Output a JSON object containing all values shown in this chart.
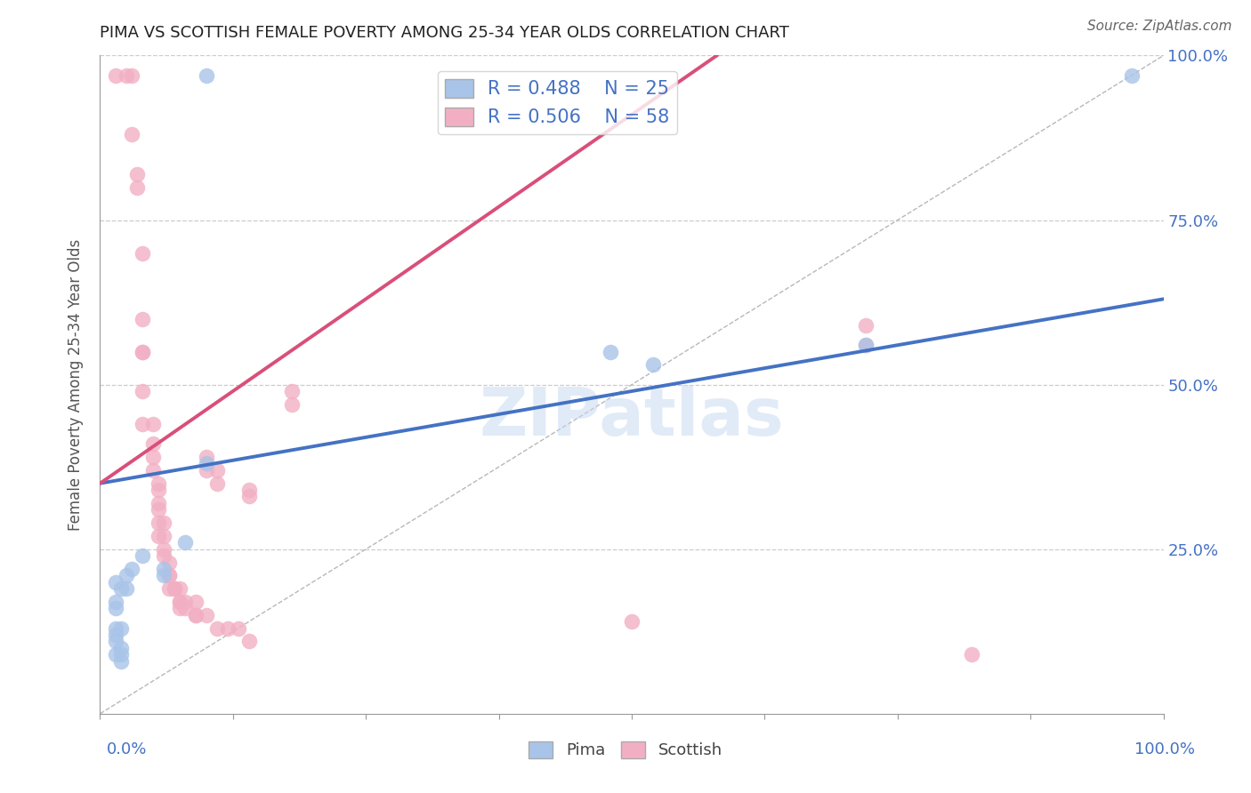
{
  "title": "PIMA VS SCOTTISH FEMALE POVERTY AMONG 25-34 YEAR OLDS CORRELATION CHART",
  "source": "Source: ZipAtlas.com",
  "ylabel": "Female Poverty Among 25-34 Year Olds",
  "watermark": "ZIPatlas",
  "pima_R": 0.488,
  "pima_N": 25,
  "scottish_R": 0.506,
  "scottish_N": 58,
  "pima_color": "#a8c4e8",
  "scottish_color": "#f2afc4",
  "pima_line_color": "#4472c4",
  "scottish_line_color": "#d94f7a",
  "diagonal_color": "#b8b8b8",
  "grid_color": "#cccccc",
  "background_color": "#ffffff",
  "title_color": "#222222",
  "legend_text_color": "#4472c4",
  "axis_label_color": "#4472c4",
  "pima_points": [
    [
      0.015,
      0.2
    ],
    [
      0.015,
      0.17
    ],
    [
      0.015,
      0.16
    ],
    [
      0.015,
      0.13
    ],
    [
      0.015,
      0.12
    ],
    [
      0.015,
      0.11
    ],
    [
      0.015,
      0.09
    ],
    [
      0.02,
      0.19
    ],
    [
      0.02,
      0.13
    ],
    [
      0.02,
      0.1
    ],
    [
      0.02,
      0.09
    ],
    [
      0.02,
      0.08
    ],
    [
      0.025,
      0.21
    ],
    [
      0.025,
      0.19
    ],
    [
      0.03,
      0.22
    ],
    [
      0.04,
      0.24
    ],
    [
      0.06,
      0.22
    ],
    [
      0.06,
      0.21
    ],
    [
      0.08,
      0.26
    ],
    [
      0.1,
      0.97
    ],
    [
      0.48,
      0.55
    ],
    [
      0.52,
      0.53
    ],
    [
      0.72,
      0.56
    ],
    [
      0.97,
      0.97
    ],
    [
      0.1,
      0.38
    ]
  ],
  "scottish_points": [
    [
      0.015,
      0.97
    ],
    [
      0.025,
      0.97
    ],
    [
      0.03,
      0.97
    ],
    [
      0.03,
      0.88
    ],
    [
      0.035,
      0.82
    ],
    [
      0.035,
      0.8
    ],
    [
      0.04,
      0.7
    ],
    [
      0.04,
      0.6
    ],
    [
      0.04,
      0.55
    ],
    [
      0.04,
      0.55
    ],
    [
      0.04,
      0.49
    ],
    [
      0.04,
      0.44
    ],
    [
      0.05,
      0.44
    ],
    [
      0.05,
      0.41
    ],
    [
      0.05,
      0.39
    ],
    [
      0.05,
      0.37
    ],
    [
      0.055,
      0.35
    ],
    [
      0.055,
      0.34
    ],
    [
      0.055,
      0.32
    ],
    [
      0.055,
      0.31
    ],
    [
      0.055,
      0.29
    ],
    [
      0.055,
      0.27
    ],
    [
      0.06,
      0.29
    ],
    [
      0.06,
      0.27
    ],
    [
      0.06,
      0.25
    ],
    [
      0.06,
      0.24
    ],
    [
      0.065,
      0.23
    ],
    [
      0.065,
      0.21
    ],
    [
      0.065,
      0.21
    ],
    [
      0.065,
      0.19
    ],
    [
      0.07,
      0.19
    ],
    [
      0.07,
      0.19
    ],
    [
      0.075,
      0.19
    ],
    [
      0.075,
      0.17
    ],
    [
      0.075,
      0.17
    ],
    [
      0.075,
      0.16
    ],
    [
      0.08,
      0.17
    ],
    [
      0.08,
      0.16
    ],
    [
      0.09,
      0.17
    ],
    [
      0.09,
      0.15
    ],
    [
      0.09,
      0.15
    ],
    [
      0.1,
      0.39
    ],
    [
      0.1,
      0.37
    ],
    [
      0.1,
      0.15
    ],
    [
      0.11,
      0.37
    ],
    [
      0.11,
      0.35
    ],
    [
      0.11,
      0.13
    ],
    [
      0.12,
      0.13
    ],
    [
      0.13,
      0.13
    ],
    [
      0.14,
      0.11
    ],
    [
      0.14,
      0.34
    ],
    [
      0.14,
      0.33
    ],
    [
      0.18,
      0.49
    ],
    [
      0.18,
      0.47
    ],
    [
      0.5,
      0.14
    ],
    [
      0.72,
      0.59
    ],
    [
      0.72,
      0.56
    ],
    [
      0.82,
      0.09
    ]
  ],
  "xlim": [
    0.0,
    1.0
  ],
  "ylim": [
    0.0,
    1.0
  ],
  "pima_line_x": [
    0.0,
    1.0
  ],
  "pima_line_y": [
    0.35,
    0.63
  ],
  "scottish_line_x": [
    0.0,
    0.58
  ],
  "scottish_line_y": [
    0.35,
    1.0
  ]
}
